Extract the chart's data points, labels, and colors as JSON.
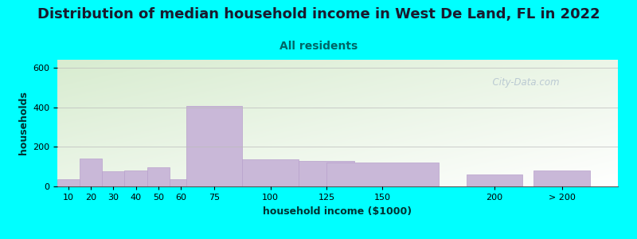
{
  "title": "Distribution of median household income in West De Land, FL in 2022",
  "subtitle": "All residents",
  "xlabel": "household income ($1000)",
  "ylabel": "households",
  "background_outer": "#00FFFF",
  "bar_color": "#C9B8D8",
  "bar_edge_color": "#B8A0CC",
  "categories": [
    "10",
    "20",
    "30",
    "40",
    "50",
    "60",
    "75",
    "100",
    "125",
    "150",
    "200",
    "> 200"
  ],
  "values": [
    35,
    140,
    75,
    80,
    95,
    35,
    405,
    135,
    130,
    120,
    60,
    80
  ],
  "ylim": [
    0,
    640
  ],
  "yticks": [
    0,
    200,
    400,
    600
  ],
  "title_fontsize": 13,
  "subtitle_fontsize": 10,
  "axis_label_fontsize": 9,
  "tick_fontsize": 8,
  "title_color": "#1a1a2e",
  "subtitle_color": "#006666",
  "axis_label_color": "#003333",
  "watermark_text": "  City-Data.com",
  "plot_bg_top_left": "#d8ecd0",
  "plot_bg_bottom_right": "#ffffff",
  "x_positions": [
    10,
    20,
    30,
    40,
    50,
    60,
    75,
    100,
    125,
    150,
    200,
    230
  ],
  "x_widths": [
    10,
    10,
    10,
    10,
    10,
    10,
    25,
    25,
    25,
    50,
    25,
    25
  ],
  "xlim_left": 5,
  "xlim_right": 255
}
